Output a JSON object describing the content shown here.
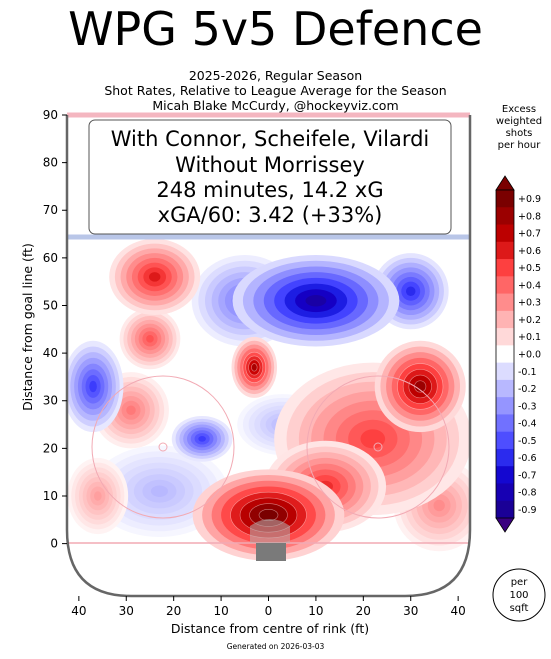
{
  "chart_data": {
    "type": "heatmap",
    "title": "WPG 5v5 Defence",
    "subtitle_lines": [
      "2025-2026, Regular Season",
      "Shot Rates, Relative to League Average for the Season",
      "Micah Blake McCurdy, @hockeyviz.com"
    ],
    "annotation_lines": [
      "With Connor, Scheifele, Vilardi",
      "Without Morrissey",
      "248 minutes, 14.2 xG",
      "xGA/60: 3.42 (+33%)"
    ],
    "xlabel": "Distance from centre of rink (ft)",
    "ylabel": "Distance from goal line (ft)",
    "x_ticks": [
      40,
      30,
      20,
      10,
      0,
      10,
      20,
      30,
      40
    ],
    "y_ticks": [
      0,
      10,
      20,
      30,
      40,
      50,
      60,
      70,
      80,
      90
    ],
    "xlim": [
      -42.5,
      42.5
    ],
    "ylim": [
      -11,
      90
    ],
    "colorbar": {
      "label_lines": [
        "Excess",
        "weighted",
        "shots",
        "per hour"
      ],
      "ticks": [
        "+0.9",
        "+0.8",
        "+0.7",
        "+0.6",
        "+0.5",
        "+0.4",
        "+0.3",
        "+0.2",
        "+0.1",
        "+0.0",
        "-0.1",
        "-0.2",
        "-0.3",
        "-0.4",
        "-0.5",
        "-0.6",
        "-0.7",
        "-0.8",
        "-0.9"
      ],
      "range": [
        -0.9,
        0.9
      ],
      "positive_color": "#7a0000",
      "negative_color": "#1a00a0"
    },
    "unit_badge": [
      "per",
      "100",
      "sqft"
    ],
    "hotspots": [
      {
        "x": 0,
        "y": 6,
        "value": 0.95,
        "sx": 10,
        "sy": 6
      },
      {
        "x": 32,
        "y": 33,
        "value": 0.8,
        "sx": 6,
        "sy": 6
      },
      {
        "x": 22,
        "y": 22,
        "value": 0.5,
        "sx": 13,
        "sy": 10
      },
      {
        "x": 12,
        "y": 12,
        "value": 0.55,
        "sx": 8,
        "sy": 6
      },
      {
        "x": -3,
        "y": 37,
        "value": 0.75,
        "sx": 3,
        "sy": 4
      },
      {
        "x": -24,
        "y": 56,
        "value": 0.6,
        "sx": 6,
        "sy": 5
      },
      {
        "x": -25,
        "y": 43,
        "value": 0.45,
        "sx": 4,
        "sy": 4
      },
      {
        "x": -29,
        "y": 28,
        "value": 0.35,
        "sx": 5,
        "sy": 5
      },
      {
        "x": 36,
        "y": 8,
        "value": 0.3,
        "sx": 6,
        "sy": 6
      },
      {
        "x": -36,
        "y": 10,
        "value": 0.25,
        "sx": 4,
        "sy": 5
      },
      {
        "x": 10,
        "y": 51,
        "value": -0.85,
        "sx": 11,
        "sy": 6
      },
      {
        "x": -5,
        "y": 51,
        "value": -0.4,
        "sx": 7,
        "sy": 6
      },
      {
        "x": 30,
        "y": 53,
        "value": -0.6,
        "sx": 5,
        "sy": 5
      },
      {
        "x": -37,
        "y": 33,
        "value": -0.55,
        "sx": 4,
        "sy": 6
      },
      {
        "x": -14,
        "y": 22,
        "value": -0.55,
        "sx": 4,
        "sy": 3
      },
      {
        "x": -23,
        "y": 11,
        "value": -0.2,
        "sx": 9,
        "sy": 6
      },
      {
        "x": 3,
        "y": 25,
        "value": -0.2,
        "sx": 6,
        "sy": 4
      }
    ]
  }
}
